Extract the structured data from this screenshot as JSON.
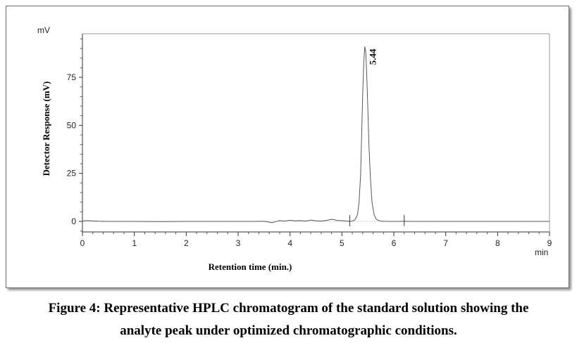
{
  "caption": {
    "line1": "Figure 4: Representative HPLC chromatogram of the standard solution showing the",
    "line2": "analyte peak under optimized chromatographic conditions."
  },
  "chart_data": {
    "type": "line",
    "xlabel": "Retention time (min.)",
    "ylabel": "Detector Response (mV)",
    "x_unit": "min",
    "y_unit": "mV",
    "xlim": [
      0,
      9
    ],
    "ylim": [
      -5,
      98
    ],
    "x_ticks": [
      0,
      1,
      2,
      3,
      4,
      5,
      6,
      7,
      8,
      9
    ],
    "y_ticks": [
      0,
      25,
      50,
      75
    ],
    "grid": false,
    "series": [
      {
        "color": "#555555",
        "x": [
          0,
          0.1,
          0.3,
          0.5,
          1.0,
          1.5,
          2.0,
          2.5,
          3.0,
          3.3,
          3.5,
          3.6,
          3.65,
          3.7,
          3.8,
          3.9,
          4.0,
          4.1,
          4.2,
          4.3,
          4.4,
          4.5,
          4.6,
          4.7,
          4.8,
          4.85,
          4.9,
          5.0,
          5.1,
          5.15,
          5.2,
          5.25,
          5.3,
          5.33,
          5.36,
          5.38,
          5.4,
          5.42,
          5.44,
          5.46,
          5.48,
          5.5,
          5.52,
          5.55,
          5.58,
          5.62,
          5.66,
          5.7,
          5.75,
          5.8,
          5.9,
          6.0,
          6.1,
          6.2,
          6.3,
          6.5,
          7.0,
          7.5,
          8.0,
          8.5,
          9.0
        ],
        "y": [
          0.2,
          0.4,
          0.1,
          0.0,
          0.0,
          -0.1,
          0.0,
          0.0,
          0.0,
          0.0,
          0.1,
          -0.4,
          -0.7,
          -0.3,
          0.4,
          0.2,
          0.6,
          0.3,
          0.4,
          0.2,
          0.7,
          0.3,
          0.2,
          0.5,
          1.1,
          0.9,
          0.5,
          0.4,
          0.2,
          0.0,
          0.2,
          0.8,
          3.5,
          10,
          24,
          45,
          66,
          82,
          91,
          88,
          75,
          58,
          40,
          22,
          10,
          3.5,
          1.2,
          0.5,
          0.2,
          0.1,
          0.0,
          0.0,
          0.0,
          0.1,
          0.0,
          0.0,
          0.0,
          0.0,
          0.0,
          0.0,
          0.0
        ]
      }
    ],
    "annotations": [
      {
        "text": "5.44",
        "x": 5.44,
        "y": 91,
        "rotation": -90
      }
    ],
    "markers": [
      {
        "x": 5.15,
        "y": 0.0
      },
      {
        "x": 6.2,
        "y": 0.1
      }
    ]
  }
}
